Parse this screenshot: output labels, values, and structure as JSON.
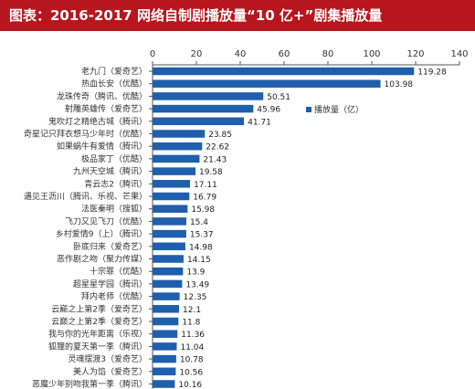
{
  "header": {
    "title": "图表：2016-2017 网络自制剧播放量“10 亿+”剧集播放量"
  },
  "colors": {
    "title_bg": "#b8161f",
    "bar": "#1f5fad"
  },
  "chart_data": {
    "type": "bar",
    "orientation": "horizontal",
    "title": "",
    "xlabel": "",
    "ylabel": "",
    "xlim": [
      0,
      140
    ],
    "x_ticks": [
      0,
      20,
      40,
      60,
      80,
      100,
      120,
      140
    ],
    "x_axis_position": "top",
    "grid": false,
    "legend_position": "right",
    "categories": [
      "老九门（爱奇艺）",
      "热血长安（优酷）",
      "龙珠传奇（腾讯、优酷）",
      "射雕英雄传（爱奇艺）",
      "鬼吹灯之精绝古城（腾讯）",
      "奇星记只拜衣想马少年时（优酷）",
      "如果蜗牛有爱情（腾讯）",
      "极品家丁（优酷）",
      "九州天空城（腾讯）",
      "青云志2（腾讯）",
      "遇见王沥川（腾讯、乐视、芒果）",
      "法医秦明（搜狐）",
      "飞刀又见飞刀（优酷）",
      "乡村爱情9（上）（腾讯）",
      "卧底归来（爱奇艺）",
      "恶作剧之吻（聚力传媒）",
      "十宗罪（优酷）",
      "超星星学园（腾讯）",
      "拜内老师（优酷）",
      "云巅之上第2季（爱奇艺）",
      "云巅之上第2季（爱奇艺）",
      "我与你的光年距离（乐视）",
      "狐狸的夏天第一季（腾讯）",
      "灵魂摆渡3（爱奇艺）",
      "美人为馅（爱奇艺）",
      "恶魔少年别吻我第一季（腾讯）"
    ],
    "series": [
      {
        "name": "播放量（亿）",
        "values": [
          119.28,
          103.98,
          50.51,
          45.96,
          41.71,
          23.85,
          22.62,
          21.43,
          19.58,
          17.11,
          16.79,
          15.98,
          15.4,
          15.37,
          14.98,
          14.15,
          13.9,
          13.49,
          12.35,
          12.1,
          11.8,
          11.36,
          11.04,
          10.78,
          10.56,
          10.16
        ]
      }
    ]
  }
}
